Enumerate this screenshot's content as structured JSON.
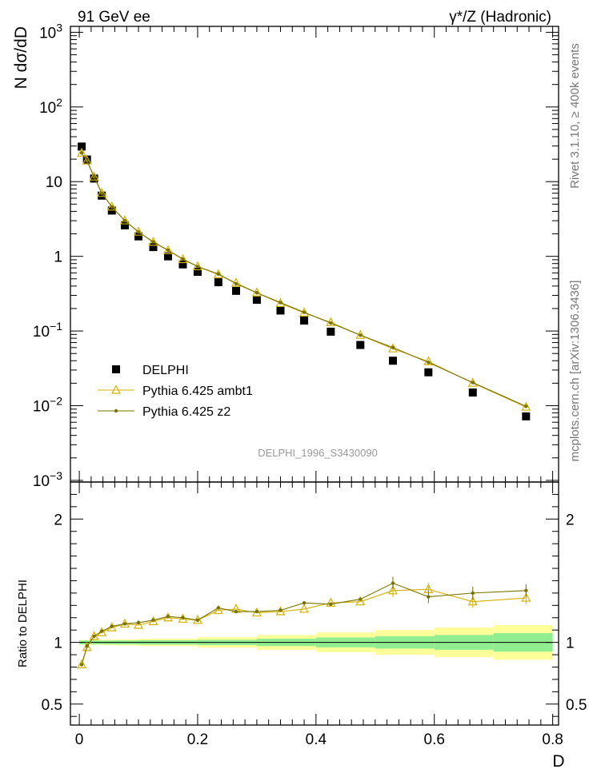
{
  "header": {
    "left": "91 GeV ee",
    "right": "γ*/Z (Hadronic)"
  },
  "side_labels": {
    "rivet": "Rivet 3.1.10, ≥ 400k events",
    "mcplots": "mcplots.cern.ch [arXiv:1306.3436]"
  },
  "watermark": "DELPHI_1996_S3430090",
  "chart_data": [
    {
      "type": "scatter",
      "panel": "main",
      "ylabel": "N dσ/dD",
      "xlim": [
        -0.015,
        0.81
      ],
      "ylim": [
        0.00095,
        1200
      ],
      "yscale": "log",
      "yticks": [
        {
          "value": 0.001,
          "base": "10",
          "exp": "−3"
        },
        {
          "value": 0.01,
          "base": "10",
          "exp": "−2"
        },
        {
          "value": 0.1,
          "base": "10",
          "exp": "−1"
        },
        {
          "value": 1,
          "base": "1",
          "exp": ""
        },
        {
          "value": 10,
          "base": "10",
          "exp": ""
        },
        {
          "value": 100,
          "base": "10",
          "exp": "2"
        },
        {
          "value": 1000,
          "base": "10",
          "exp": "3"
        }
      ],
      "legend": {
        "position": "bottom-left",
        "entries": [
          "DELPHI",
          "Pythia 6.425 ambt1",
          "Pythia 6.425 z2"
        ]
      },
      "x": [
        0.004,
        0.013,
        0.025,
        0.038,
        0.055,
        0.077,
        0.1,
        0.125,
        0.15,
        0.175,
        0.2,
        0.235,
        0.265,
        0.3,
        0.34,
        0.38,
        0.425,
        0.475,
        0.53,
        0.59,
        0.665,
        0.755
      ],
      "series": [
        {
          "name": "DELPHI",
          "color": "#000000",
          "marker": "square",
          "values": [
            29.5,
            19.8,
            11.0,
            6.5,
            4.1,
            2.6,
            1.85,
            1.33,
            1.0,
            0.78,
            0.62,
            0.45,
            0.345,
            0.262,
            0.188,
            0.138,
            0.098,
            0.065,
            0.04,
            0.028,
            0.015,
            0.0072
          ]
        },
        {
          "name": "Pythia 6.425 ambt1",
          "color": "#d4b000",
          "marker": "triangle",
          "values": [
            24.2,
            19.0,
            11.6,
            7.0,
            4.6,
            3.0,
            2.12,
            1.55,
            1.2,
            0.91,
            0.73,
            0.57,
            0.44,
            0.325,
            0.235,
            0.175,
            0.13,
            0.088,
            0.058,
            0.039,
            0.0201,
            0.0096
          ]
        },
        {
          "name": "Pythia 6.425 z2",
          "color": "#7a7300",
          "marker": "dot",
          "values": [
            24.2,
            19.0,
            11.6,
            7.0,
            4.6,
            3.0,
            2.12,
            1.56,
            1.21,
            0.92,
            0.73,
            0.58,
            0.43,
            0.325,
            0.24,
            0.178,
            0.128,
            0.088,
            0.06,
            0.038,
            0.0204,
            0.0098
          ]
        }
      ]
    },
    {
      "type": "line",
      "panel": "ratio",
      "xlabel": "D",
      "ylabel": "Ratio to DELPHI",
      "xlim": [
        -0.015,
        0.81
      ],
      "ylim": [
        0.33,
        2.3
      ],
      "yticks": [
        0.5,
        1,
        2
      ],
      "xticks": [
        0,
        0.2,
        0.4,
        0.6,
        0.8
      ],
      "x": [
        0.004,
        0.013,
        0.025,
        0.038,
        0.055,
        0.077,
        0.1,
        0.125,
        0.15,
        0.175,
        0.2,
        0.235,
        0.265,
        0.3,
        0.34,
        0.38,
        0.425,
        0.475,
        0.53,
        0.59,
        0.665,
        0.755
      ],
      "bands": {
        "bin_edges": [
          0.0,
          0.02,
          0.04,
          0.06,
          0.1,
          0.2,
          0.3,
          0.4,
          0.5,
          0.6,
          0.7,
          0.8
        ],
        "green": [
          0.015,
          0.015,
          0.015,
          0.016,
          0.018,
          0.022,
          0.03,
          0.04,
          0.05,
          0.06,
          0.075
        ],
        "yellow": [
          0.02,
          0.02,
          0.022,
          0.025,
          0.03,
          0.042,
          0.06,
          0.08,
          0.1,
          0.12,
          0.14
        ],
        "green_color": "#90ee90",
        "yellow_color": "#ffff99"
      },
      "series": [
        {
          "name": "Pythia 6.425 ambt1",
          "color": "#d4b000",
          "marker": "triangle",
          "values": [
            0.82,
            0.96,
            1.05,
            1.08,
            1.12,
            1.15,
            1.14,
            1.17,
            1.2,
            1.19,
            1.18,
            1.26,
            1.27,
            1.24,
            1.25,
            1.27,
            1.32,
            1.33,
            1.42,
            1.43,
            1.33,
            1.36
          ]
        },
        {
          "name": "Pythia 6.425 z2",
          "color": "#7a7300",
          "marker": "dot",
          "values": [
            0.82,
            0.97,
            1.05,
            1.09,
            1.13,
            1.15,
            1.16,
            1.18,
            1.21,
            1.2,
            1.18,
            1.28,
            1.25,
            1.25,
            1.26,
            1.32,
            1.31,
            1.35,
            1.48,
            1.37,
            1.4,
            1.42
          ]
        }
      ]
    }
  ]
}
